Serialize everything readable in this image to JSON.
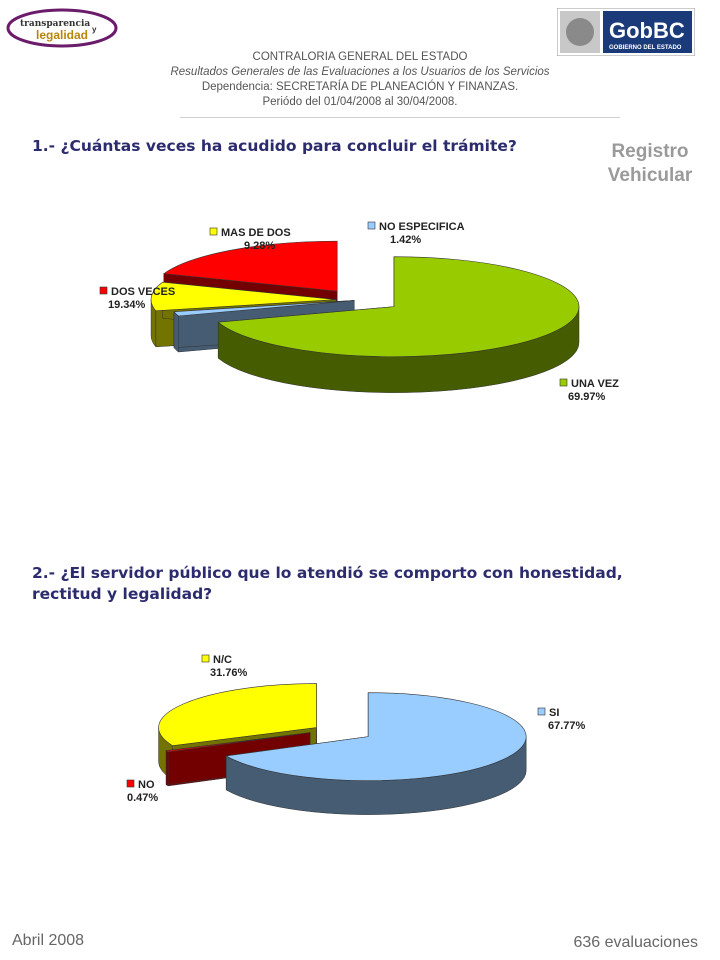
{
  "header": {
    "logo_left_text_1": "transparencia",
    "logo_left_text_2": "y",
    "logo_left_text_3": "legalidad",
    "logo_right_text_1": "GobBC",
    "logo_right_text_2": "GOBIERNO DEL ESTADO",
    "line1": "CONTRALORIA GENERAL DEL ESTADO",
    "line2": "Resultados Generales de las Evaluaciones a los Usuarios de los Servicios",
    "line3": "Dependencia: SECRETARÍA DE PLANEACIÓN Y FINANZAS.",
    "line4": "Periódo del 01/04/2008 al 30/04/2008."
  },
  "section_title": "Registro Vehicular",
  "footer": {
    "date": "Abril 2008",
    "count": "636 evaluaciones"
  },
  "colors": {
    "green": "#99cc00",
    "red": "#ff0000",
    "yellow": "#ffff00",
    "light_blue": "#99ccff",
    "question": "#2b2b6e"
  },
  "chart_data": [
    {
      "type": "pie",
      "title": "1.- ¿Cuántas veces ha acudido para concluir el trámite?",
      "slices": [
        {
          "label": "UNA VEZ",
          "value": 69.97,
          "display": "69.97%",
          "color": "#99cc00"
        },
        {
          "label": "NO ESPECIFICA",
          "value": 1.42,
          "display": "1.42%",
          "color": "#99ccff"
        },
        {
          "label": "MAS DE DOS",
          "value": 9.28,
          "display": "9.28%",
          "color": "#ffff00"
        },
        {
          "label": "DOS VECES",
          "value": 19.34,
          "display": "19.34%",
          "color": "#ff0000"
        }
      ]
    },
    {
      "type": "pie",
      "title": "2.- ¿El servidor público que lo atendió se comporto con honestidad, rectitud y legalidad?",
      "slices": [
        {
          "label": "SI",
          "value": 67.77,
          "display": "67.77%",
          "color": "#99ccff"
        },
        {
          "label": "NO",
          "value": 0.47,
          "display": "0.47%",
          "color": "#ff0000"
        },
        {
          "label": "N/C",
          "value": 31.76,
          "display": "31.76%",
          "color": "#ffff00"
        }
      ]
    }
  ]
}
